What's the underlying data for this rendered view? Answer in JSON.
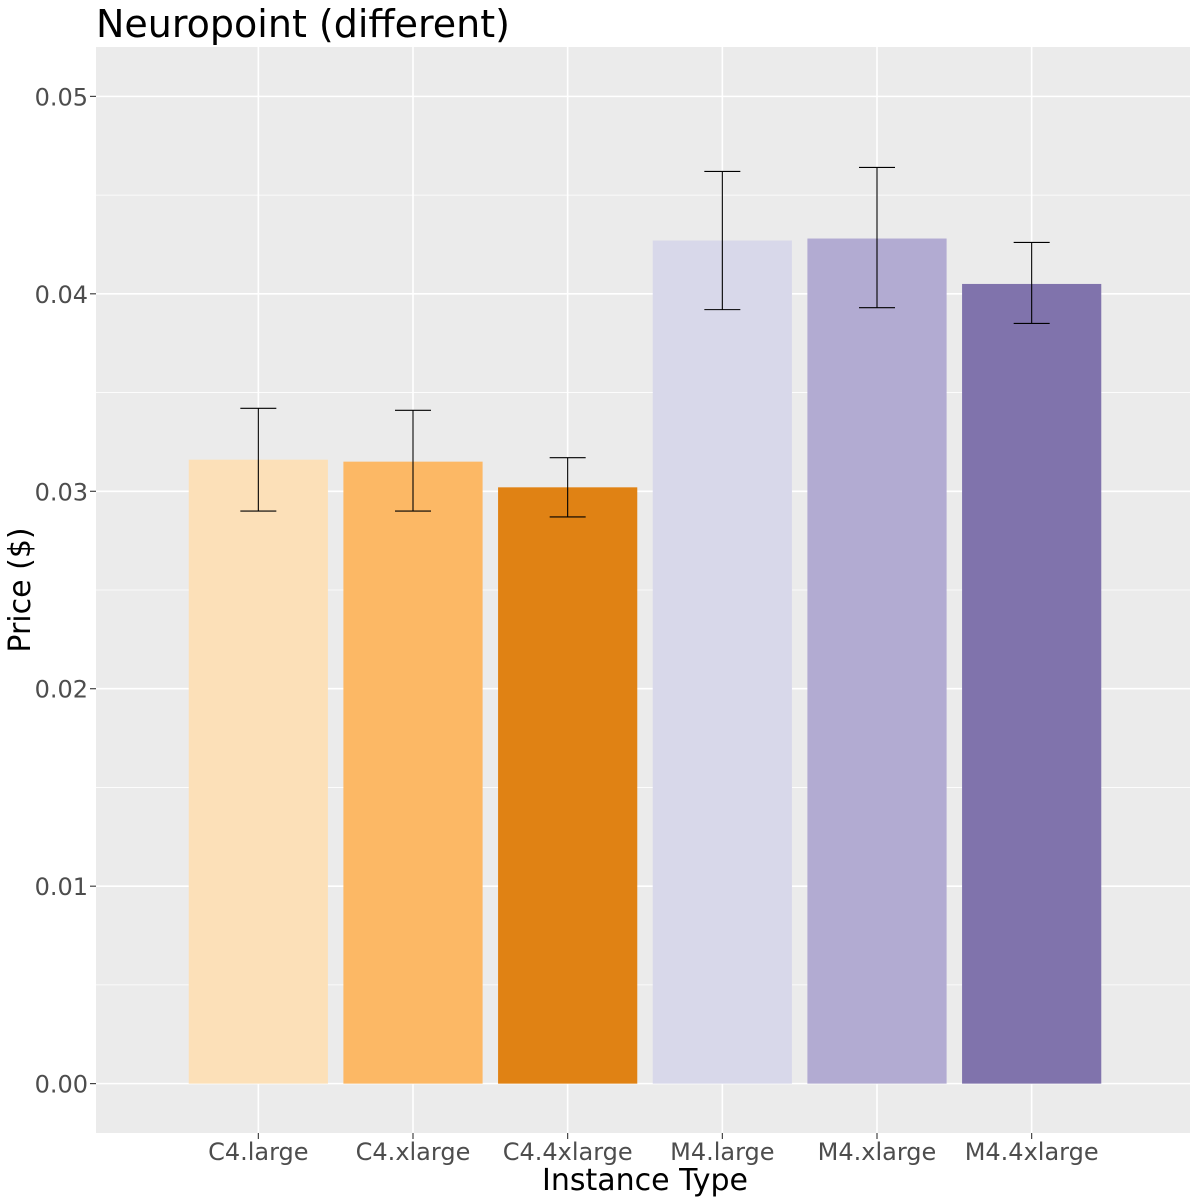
{
  "chart_data": {
    "type": "bar",
    "title": "Neuropoint (different)",
    "xlabel": "Instance Type",
    "ylabel": "Price ($)",
    "categories": [
      "C4.large",
      "C4.xlarge",
      "C4.4xlarge",
      "M4.large",
      "M4.xlarge",
      "M4.4xlarge"
    ],
    "values": [
      0.0316,
      0.0315,
      0.0302,
      0.0427,
      0.0428,
      0.0405
    ],
    "error_low": [
      0.029,
      0.029,
      0.0287,
      0.0392,
      0.0393,
      0.0385
    ],
    "error_high": [
      0.0342,
      0.0341,
      0.0317,
      0.0462,
      0.0464,
      0.0426
    ],
    "bar_colors": [
      "#fce0b8",
      "#fcb865",
      "#e08214",
      "#d8d8ea",
      "#b2abd2",
      "#8073ac"
    ],
    "ylim": [
      -0.0025,
      0.0525
    ],
    "yticks": [
      0.0,
      0.01,
      0.02,
      0.03,
      0.04,
      0.05
    ],
    "ytick_labels": [
      "0.00",
      "0.01",
      "0.02",
      "0.03",
      "0.04",
      "0.05"
    ],
    "grid": true,
    "legend": "none",
    "panel_background": "#ebebeb",
    "gridline_color": "#ffffff"
  }
}
